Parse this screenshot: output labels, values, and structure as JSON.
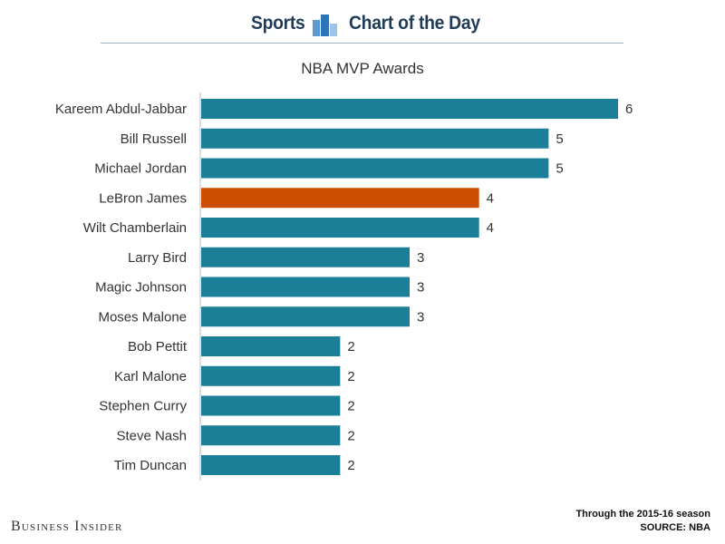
{
  "header": {
    "left": "Sports",
    "right": "Chart of the Day",
    "icon": "bar-chart-icon"
  },
  "footer": {
    "brand": "Business Insider",
    "note_line1": "Through the 2015-16 season",
    "note_line2": "SOURCE: NBA"
  },
  "colors": {
    "bar": "#1b7f98",
    "highlight": "#cc4e00",
    "header_text": "#1f3b57"
  },
  "chart_data": {
    "type": "bar",
    "orientation": "horizontal",
    "title": "NBA MVP Awards",
    "categories": [
      "Kareem Abdul-Jabbar",
      "Bill Russell",
      "Michael Jordan",
      "LeBron James",
      "Wilt Chamberlain",
      "Larry Bird",
      "Magic Johnson",
      "Moses Malone",
      "Bob Pettit",
      "Karl Malone",
      "Stephen Curry",
      "Steve Nash",
      "Tim Duncan"
    ],
    "values": [
      6,
      5,
      5,
      4,
      4,
      3,
      3,
      3,
      2,
      2,
      2,
      2,
      2
    ],
    "highlight_category": "LeBron James",
    "xlim": [
      0,
      6
    ],
    "grid": false,
    "legend": false
  }
}
